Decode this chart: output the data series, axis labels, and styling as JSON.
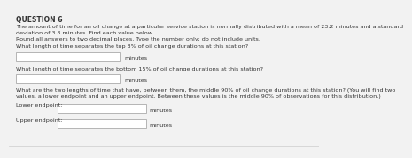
{
  "title": "QUESTION 6",
  "line1": "The amount of time for an oil change at a particular service station is normally distributed with a mean of 23.2 minutes and a standard",
  "line2": "deviation of 3.8 minutes. Find each value below.",
  "line3": "Round all answers to two decimal places. Type the number only; do not include units.",
  "q1": "What length of time separates the top 3% of oil change durations at this station?",
  "q2": "What length of time separates the bottom 15% of oil change durations at this station?",
  "q3a": "What are the two lengths of time that have, between them, the middle 90% of oil change durations at this station? (You will find two",
  "q3b": "values, a lower endpoint and an upper endpoint. Between these values is the middle 90% of observations for this distribution.)",
  "label_minutes": "minutes",
  "label_lower": "Lower endpoint:",
  "label_upper": "Upper endpoint:",
  "bg_color": "#f2f2f2",
  "box_facecolor": "#ffffff",
  "box_edgecolor": "#aaaaaa",
  "title_fontsize": 5.5,
  "body_fontsize": 4.6,
  "label_fontsize": 4.6,
  "title_color": "#333333",
  "body_color": "#333333"
}
